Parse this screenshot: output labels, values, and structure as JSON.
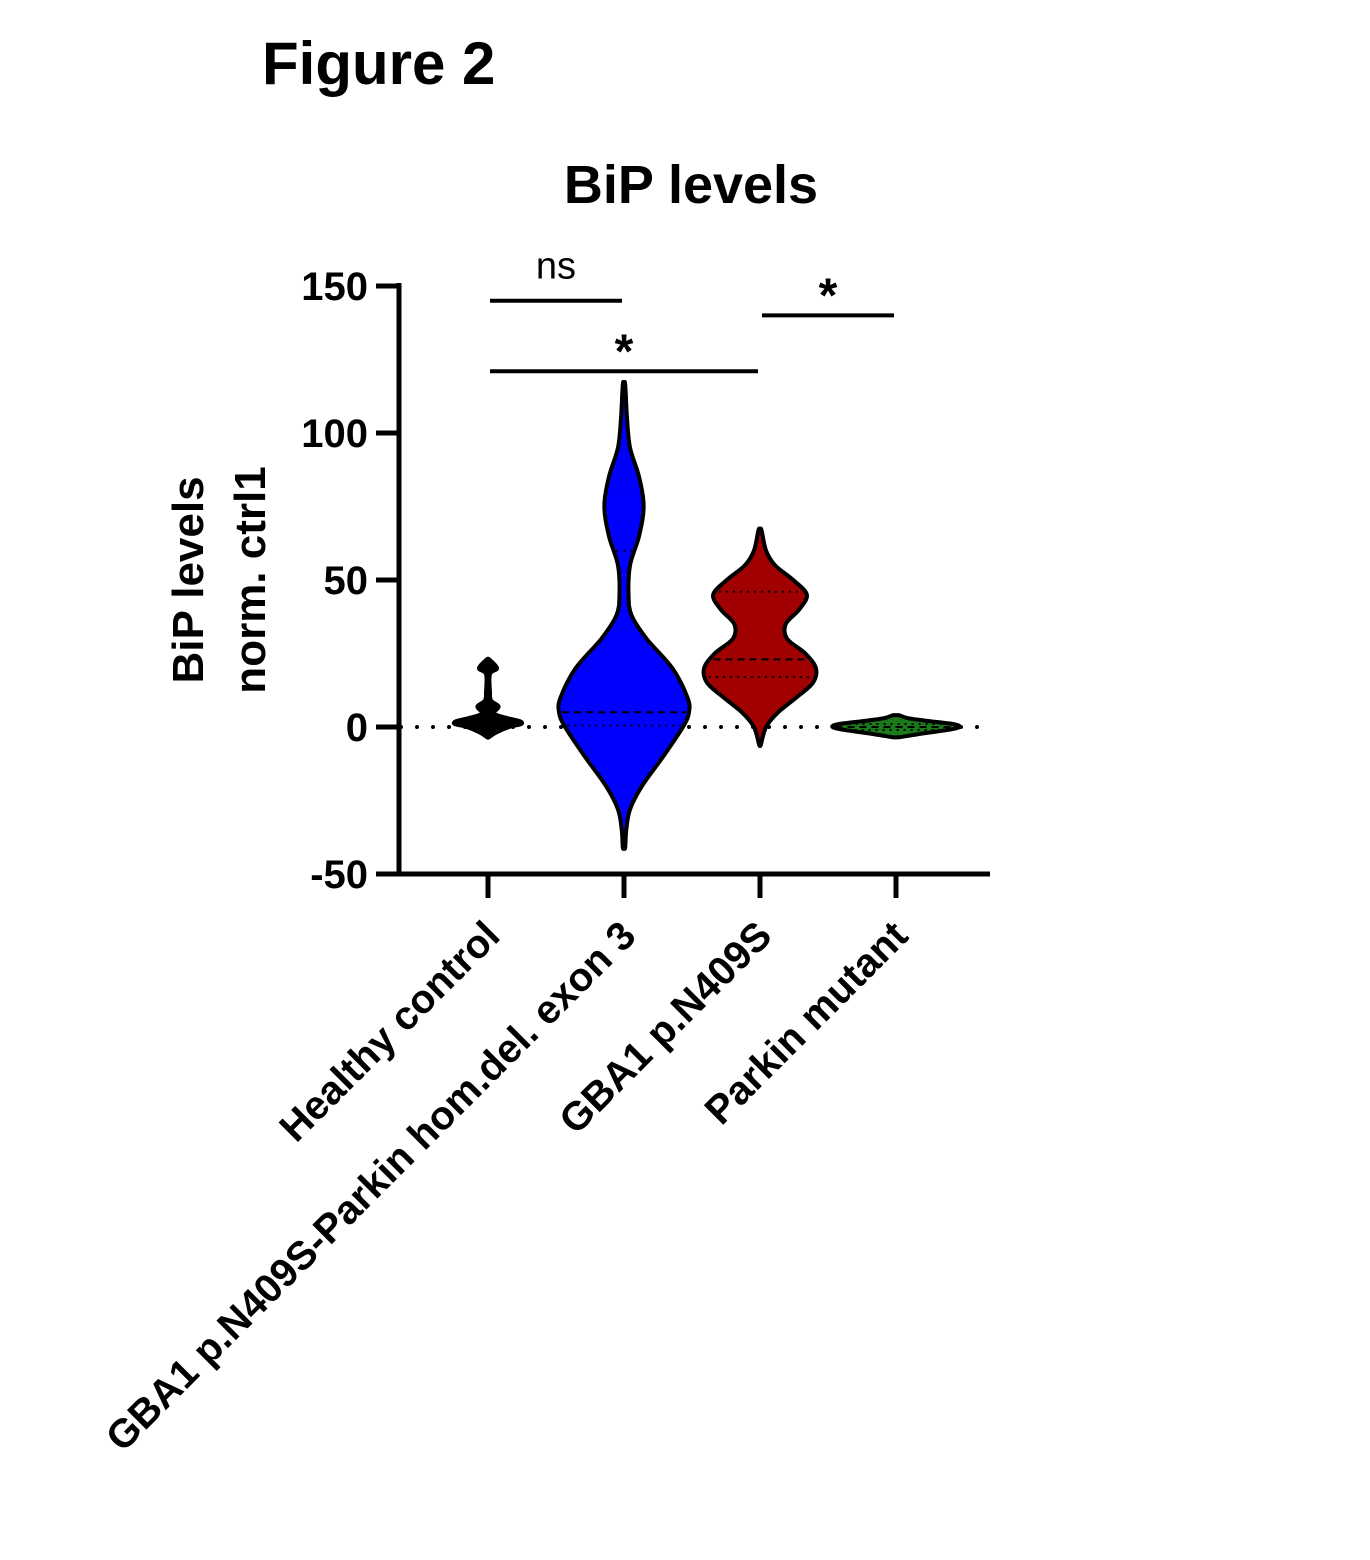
{
  "figure_label": "Figure 2",
  "chart_data": {
    "type": "violin",
    "title": "BiP levels",
    "ylabel_line1": "BiP levels",
    "ylabel_line2": "norm. ctrl1",
    "xlabel": "",
    "ylim": [
      -50,
      150
    ],
    "yticks": [
      -50,
      0,
      50,
      100,
      150
    ],
    "reference_line": 0,
    "categories": [
      "Healthy control",
      "GBA1 p.N409S-Parkin hom.del. exon 3",
      "GBA1 p.N409S",
      "Parkin mutant"
    ],
    "series": [
      {
        "category": "Healthy control",
        "color": "#000000",
        "density": [
          [
            -3.5,
            0.6
          ],
          [
            -2,
            5
          ],
          [
            0,
            14
          ],
          [
            1,
            22
          ],
          [
            2,
            21
          ],
          [
            3,
            13
          ],
          [
            4,
            6
          ],
          [
            5,
            4
          ],
          [
            7,
            7
          ],
          [
            9,
            2
          ],
          [
            12,
            1.3
          ],
          [
            18,
            1.3
          ],
          [
            20,
            6
          ],
          [
            23,
            0.8
          ]
        ],
        "median": 2,
        "quartiles": [
          1,
          3
        ]
      },
      {
        "category": "GBA1 p.N409S-Parkin hom.del. exon 3",
        "color": "#0000ff",
        "density": [
          [
            -41,
            0.8
          ],
          [
            -35,
            1.5
          ],
          [
            -28,
            4
          ],
          [
            -20,
            12
          ],
          [
            -10,
            26
          ],
          [
            0,
            39
          ],
          [
            5,
            43
          ],
          [
            10,
            42
          ],
          [
            20,
            32
          ],
          [
            30,
            15
          ],
          [
            38,
            5
          ],
          [
            45,
            3
          ],
          [
            55,
            4
          ],
          [
            65,
            10
          ],
          [
            75,
            13
          ],
          [
            85,
            10
          ],
          [
            95,
            4
          ],
          [
            105,
            2
          ],
          [
            112,
            1.3
          ],
          [
            117,
            0.7
          ]
        ],
        "median": 5,
        "quartiles": [
          0.5,
          60
        ]
      },
      {
        "category": "GBA1 p.N409S",
        "color": "#a00000",
        "density": [
          [
            -6,
            0.6
          ],
          [
            0,
            4
          ],
          [
            5,
            12
          ],
          [
            10,
            24
          ],
          [
            15,
            35
          ],
          [
            20,
            37
          ],
          [
            25,
            30
          ],
          [
            30,
            18
          ],
          [
            35,
            17
          ],
          [
            40,
            26
          ],
          [
            45,
            31
          ],
          [
            50,
            22
          ],
          [
            55,
            10
          ],
          [
            60,
            4
          ],
          [
            67,
            1
          ]
        ],
        "median": 23,
        "quartiles": [
          17,
          46
        ]
      },
      {
        "category": "Parkin mutant",
        "color": "#1a7a1a",
        "density": [
          [
            -3.5,
            2
          ],
          [
            -2.5,
            14
          ],
          [
            -1,
            34
          ],
          [
            0,
            42
          ],
          [
            1,
            38
          ],
          [
            2,
            22
          ],
          [
            3,
            8
          ],
          [
            4,
            2
          ]
        ],
        "median": 0,
        "quartiles": [
          -1,
          1
        ]
      }
    ],
    "significance": [
      {
        "from": 0,
        "to": 1,
        "label": "ns",
        "y": 145
      },
      {
        "from": 0,
        "to": 2,
        "label": "*",
        "y": 121
      },
      {
        "from": 2,
        "to": 3,
        "label": "*",
        "y": 140
      }
    ]
  }
}
